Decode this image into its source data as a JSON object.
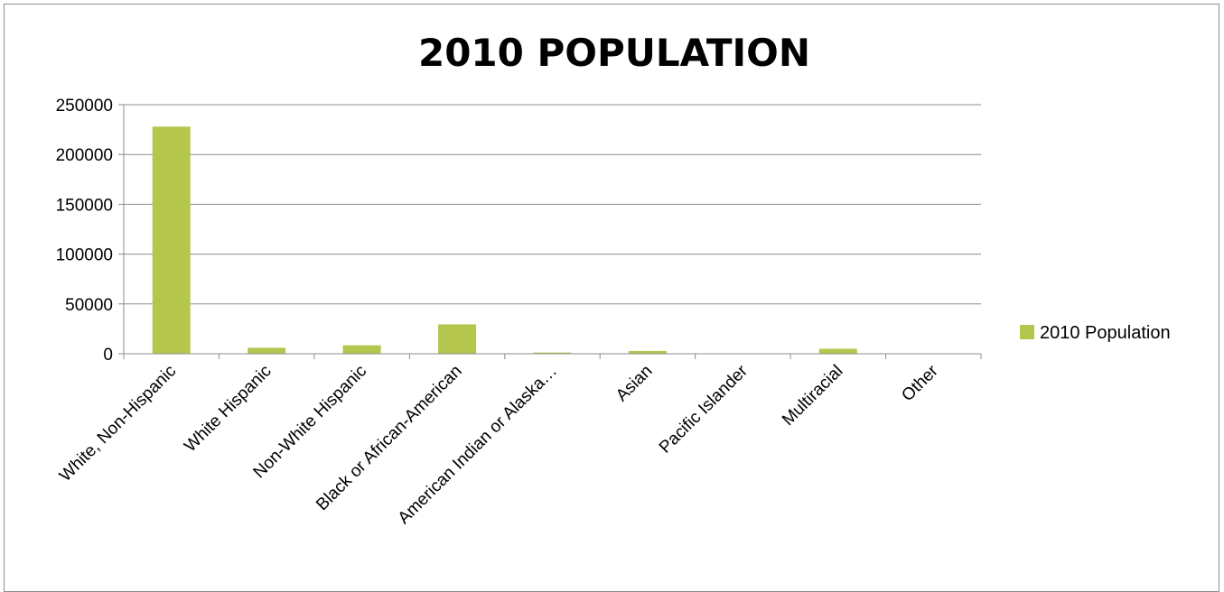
{
  "chart_data": {
    "type": "bar",
    "title": "2010 POPULATION",
    "xlabel": "",
    "ylabel": "",
    "categories": [
      "White, Non-Hispanic",
      "White Hispanic",
      "Non-White Hispanic",
      "Black or African-American",
      "American Indian or Alaska…",
      "Asian",
      "Pacific Islander",
      "Multiracial",
      "Other"
    ],
    "series": [
      {
        "name": "2010 Population",
        "values": [
          228000,
          6000,
          8500,
          29500,
          1200,
          2800,
          200,
          5000,
          300
        ],
        "color": "#b5c64e"
      }
    ],
    "ylim": [
      0,
      250000
    ],
    "yticks": [
      "0",
      "50000",
      "100000",
      "150000",
      "200000",
      "250000"
    ],
    "grid": true,
    "legend_position": "right"
  }
}
